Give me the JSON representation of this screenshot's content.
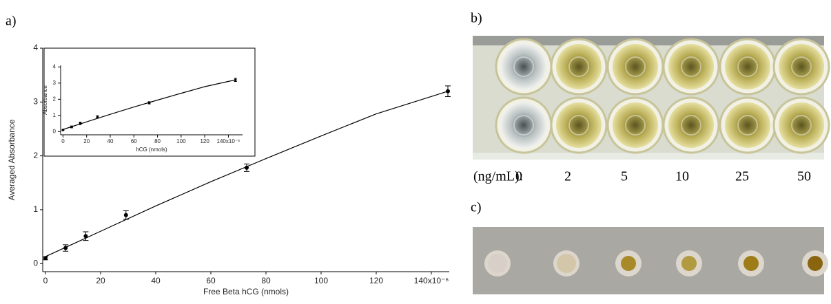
{
  "panel_labels": [
    "a)",
    "b)",
    "c)"
  ],
  "concentrations": {
    "label": "(ng/mL):",
    "values": [
      0,
      2,
      5,
      10,
      25,
      50
    ]
  },
  "chart_data": [
    {
      "type": "scatter",
      "x_label": "Free Beta hCG (nmols)",
      "y_label": "Averaged Absorbance",
      "x": [
        0,
        7.3,
        14.6,
        29.2,
        73,
        146
      ],
      "values": [
        0.1,
        0.29,
        0.51,
        0.9,
        1.78,
        3.2
      ],
      "errors": [
        0.03,
        0.06,
        0.08,
        0.08,
        0.07,
        0.1
      ],
      "fit": {
        "x": [
          0,
          20,
          40,
          60,
          80,
          100,
          120,
          146
        ],
        "values": [
          0.13,
          0.6,
          1.07,
          1.52,
          1.95,
          2.37,
          2.78,
          3.2
        ]
      },
      "color": "#000000",
      "xlim": [
        -1,
        146.5
      ],
      "ylim": [
        -0.15,
        4
      ],
      "xticks": [
        0,
        20,
        40,
        60,
        80,
        100,
        120,
        {
          "value": 140,
          "label": "140x10⁻⁶"
        }
      ],
      "yticks": [
        0,
        1,
        2,
        3,
        4
      ]
    },
    {
      "type": "scatter",
      "x_label": "hCG (nmols)",
      "y_label": "Absorbance",
      "x": [
        0,
        7.3,
        14.6,
        29.2,
        73,
        146
      ],
      "values": [
        0.1,
        0.29,
        0.51,
        0.9,
        1.78,
        3.2
      ],
      "errors": [
        0.03,
        0.06,
        0.08,
        0.08,
        0.07,
        0.1
      ],
      "fit": {
        "x": [
          0,
          20,
          40,
          60,
          80,
          100,
          120,
          146
        ],
        "values": [
          0.13,
          0.6,
          1.07,
          1.52,
          1.95,
          2.37,
          2.78,
          3.2
        ]
      },
      "color": "#000000",
      "xlim": [
        -2,
        152
      ],
      "ylim": [
        -0.2,
        4.1
      ],
      "xticks": [
        0,
        20,
        40,
        60,
        80,
        100,
        120,
        {
          "value": 140,
          "label": "140x10⁻⁶"
        }
      ],
      "yticks": [
        0,
        1,
        2,
        3,
        4
      ]
    }
  ]
}
